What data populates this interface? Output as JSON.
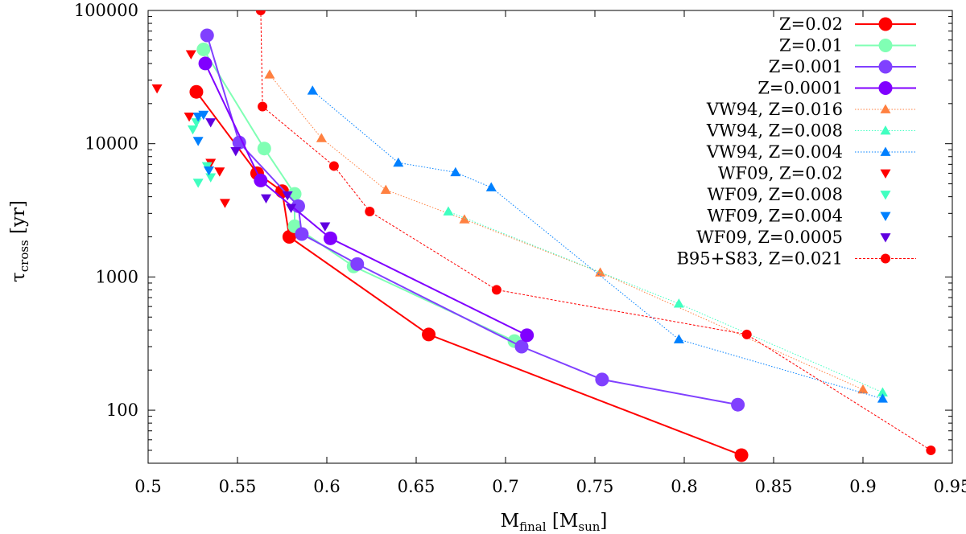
{
  "chart_data": {
    "type": "scatter",
    "title": "",
    "xlabel": {
      "main": "M",
      "sub": "final",
      "unit_open": " [M",
      "unit_sub": "sun",
      "unit_close": "]"
    },
    "ylabel": {
      "main": "τ",
      "sub": "cross",
      "unit": " [yr]"
    },
    "xlim": [
      0.5,
      0.95
    ],
    "ylim": [
      40,
      100000
    ],
    "yscale": "log",
    "x_ticks": [
      "0.5",
      "0.55",
      "0.6",
      "0.65",
      "0.7",
      "0.75",
      "0.8",
      "0.85",
      "0.9",
      "0.95"
    ],
    "y_ticks": [
      "100",
      "1000",
      "10000",
      "100000"
    ],
    "legend_position": "top-right",
    "series": [
      {
        "name": "Z=0.02",
        "color": "#ff0000",
        "marker": "circle",
        "line": "solid",
        "points": [
          [
            0.527,
            24500
          ],
          [
            0.561,
            6000
          ],
          [
            0.575,
            4400
          ],
          [
            0.579,
            2000
          ],
          [
            0.657,
            370
          ],
          [
            0.832,
            46
          ]
        ]
      },
      {
        "name": "Z=0.01",
        "color": "#80ffb4",
        "marker": "circle",
        "line": "solid",
        "points": [
          [
            0.531,
            51000
          ],
          [
            0.565,
            9200
          ],
          [
            0.582,
            4200
          ],
          [
            0.582,
            2400
          ],
          [
            0.615,
            1200
          ],
          [
            0.705,
            330
          ]
        ]
      },
      {
        "name": "Z=0.001",
        "color": "#8040ff",
        "marker": "circle",
        "line": "solid",
        "points": [
          [
            0.533,
            65000
          ],
          [
            0.551,
            10200
          ],
          [
            0.584,
            3400
          ],
          [
            0.586,
            2100
          ],
          [
            0.617,
            1250
          ],
          [
            0.709,
            300
          ],
          [
            0.754,
            170
          ],
          [
            0.83,
            110
          ]
        ]
      },
      {
        "name": "Z=0.0001",
        "color": "#8000ff",
        "marker": "circle",
        "line": "solid",
        "points": [
          [
            0.532,
            40000
          ],
          [
            0.563,
            5300
          ],
          [
            0.602,
            1950
          ],
          [
            0.712,
            365
          ]
        ]
      },
      {
        "name": "VW94, Z=0.016",
        "color": "#ff8040",
        "marker": "triangle-up",
        "line": "dotted",
        "points": [
          [
            0.568,
            33000
          ],
          [
            0.597,
            11000
          ],
          [
            0.633,
            4500
          ],
          [
            0.677,
            2700
          ],
          [
            0.753,
            1080
          ],
          [
            0.9,
            143
          ]
        ]
      },
      {
        "name": "VW94, Z=0.008",
        "color": "#40ffc0",
        "marker": "triangle-up",
        "line": "dotted",
        "points": [
          [
            0.668,
            3100
          ],
          [
            0.797,
            630
          ],
          [
            0.911,
            136
          ]
        ]
      },
      {
        "name": "VW94, Z=0.004",
        "color": "#0080ff",
        "marker": "triangle-up",
        "line": "dotted",
        "points": [
          [
            0.592,
            25000
          ],
          [
            0.64,
            7200
          ],
          [
            0.672,
            6100
          ],
          [
            0.692,
            4700
          ],
          [
            0.797,
            340
          ],
          [
            0.911,
            122
          ]
        ]
      },
      {
        "name": "WF09, Z=0.02",
        "color": "#ff0000",
        "marker": "triangle-down",
        "line": "none",
        "points": [
          [
            0.505,
            26000
          ],
          [
            0.524,
            47000
          ],
          [
            0.523,
            16000
          ],
          [
            0.535,
            7200
          ],
          [
            0.54,
            6200
          ],
          [
            0.543,
            3600
          ]
        ]
      },
      {
        "name": "WF09, Z=0.008",
        "color": "#40ffc0",
        "marker": "triangle-down",
        "line": "none",
        "points": [
          [
            0.527,
            14500
          ],
          [
            0.525,
            12800
          ],
          [
            0.528,
            5100
          ],
          [
            0.535,
            5600
          ],
          [
            0.533,
            6800
          ]
        ]
      },
      {
        "name": "WF09, Z=0.004",
        "color": "#0080ff",
        "marker": "triangle-down",
        "line": "none",
        "points": [
          [
            0.528,
            16000
          ],
          [
            0.531,
            16500
          ],
          [
            0.528,
            10500
          ],
          [
            0.534,
            6300
          ]
        ]
      },
      {
        "name": "WF09, Z=0.0005",
        "color": "#6000e0",
        "marker": "triangle-down",
        "line": "none",
        "points": [
          [
            0.535,
            14500
          ],
          [
            0.549,
            8800
          ],
          [
            0.566,
            3900
          ],
          [
            0.578,
            4100
          ],
          [
            0.58,
            3300
          ],
          [
            0.599,
            2400
          ]
        ]
      },
      {
        "name": "B95+S83, Z=0.021",
        "color": "#ff0000",
        "marker": "circle-small",
        "line": "dashed",
        "points": [
          [
            0.563,
            100000
          ],
          [
            0.564,
            19000
          ],
          [
            0.604,
            6800
          ],
          [
            0.624,
            3100
          ],
          [
            0.695,
            800
          ],
          [
            0.835,
            370
          ],
          [
            0.938,
            50
          ]
        ]
      }
    ]
  }
}
